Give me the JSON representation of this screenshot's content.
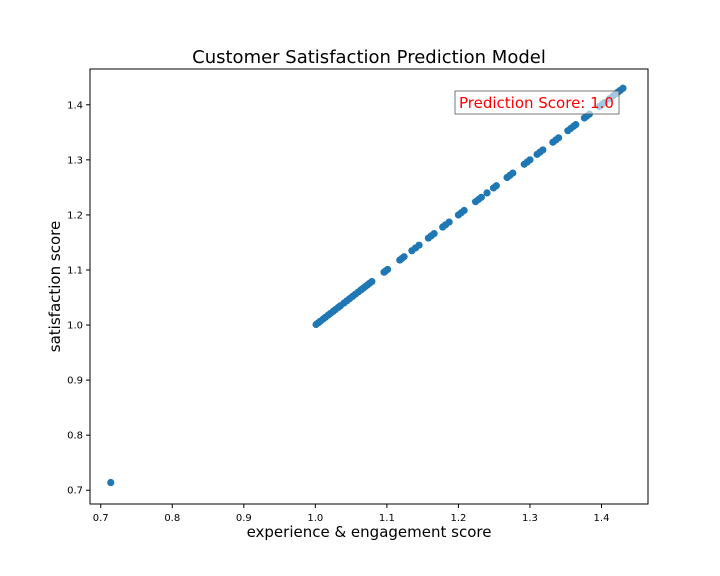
{
  "chart_data": {
    "type": "scatter",
    "title": "Customer Satisfaction Prediction Model",
    "xlabel": "experience & engagement score",
    "ylabel": "satisfaction score",
    "xlim": [
      0.685,
      1.465
    ],
    "ylim": [
      0.675,
      1.465
    ],
    "xticks": [
      0.7,
      0.8,
      0.9,
      1.0,
      1.1,
      1.2,
      1.3,
      1.4
    ],
    "yticks": [
      0.7,
      0.8,
      0.9,
      1.0,
      1.1,
      1.2,
      1.3,
      1.4
    ],
    "grid": false,
    "marker_color": "#1f77b4",
    "annotation": {
      "text": "Prediction Score: 1.0",
      "color": "#ff0000"
    },
    "points": [
      {
        "x": 0.714,
        "y": 0.714
      },
      {
        "x": 1.001,
        "y": 1.001
      },
      {
        "x": 1.004,
        "y": 1.004
      },
      {
        "x": 1.007,
        "y": 1.007
      },
      {
        "x": 1.011,
        "y": 1.011
      },
      {
        "x": 1.014,
        "y": 1.014
      },
      {
        "x": 1.018,
        "y": 1.018
      },
      {
        "x": 1.021,
        "y": 1.021
      },
      {
        "x": 1.025,
        "y": 1.025
      },
      {
        "x": 1.028,
        "y": 1.028
      },
      {
        "x": 1.032,
        "y": 1.032
      },
      {
        "x": 1.035,
        "y": 1.035
      },
      {
        "x": 1.04,
        "y": 1.04
      },
      {
        "x": 1.044,
        "y": 1.044
      },
      {
        "x": 1.048,
        "y": 1.048
      },
      {
        "x": 1.052,
        "y": 1.052
      },
      {
        "x": 1.056,
        "y": 1.056
      },
      {
        "x": 1.06,
        "y": 1.06
      },
      {
        "x": 1.064,
        "y": 1.064
      },
      {
        "x": 1.067,
        "y": 1.067
      },
      {
        "x": 1.07,
        "y": 1.07
      },
      {
        "x": 1.073,
        "y": 1.073
      },
      {
        "x": 1.076,
        "y": 1.076
      },
      {
        "x": 1.079,
        "y": 1.079
      },
      {
        "x": 1.096,
        "y": 1.096
      },
      {
        "x": 1.098,
        "y": 1.098
      },
      {
        "x": 1.101,
        "y": 1.101
      },
      {
        "x": 1.118,
        "y": 1.118
      },
      {
        "x": 1.121,
        "y": 1.121
      },
      {
        "x": 1.124,
        "y": 1.124
      },
      {
        "x": 1.135,
        "y": 1.135
      },
      {
        "x": 1.14,
        "y": 1.14
      },
      {
        "x": 1.145,
        "y": 1.145
      },
      {
        "x": 1.158,
        "y": 1.158
      },
      {
        "x": 1.162,
        "y": 1.162
      },
      {
        "x": 1.166,
        "y": 1.166
      },
      {
        "x": 1.178,
        "y": 1.178
      },
      {
        "x": 1.182,
        "y": 1.182
      },
      {
        "x": 1.187,
        "y": 1.187
      },
      {
        "x": 1.2,
        "y": 1.2
      },
      {
        "x": 1.204,
        "y": 1.204
      },
      {
        "x": 1.208,
        "y": 1.208
      },
      {
        "x": 1.224,
        "y": 1.224
      },
      {
        "x": 1.228,
        "y": 1.228
      },
      {
        "x": 1.232,
        "y": 1.232
      },
      {
        "x": 1.24,
        "y": 1.24
      },
      {
        "x": 1.249,
        "y": 1.249
      },
      {
        "x": 1.253,
        "y": 1.253
      },
      {
        "x": 1.268,
        "y": 1.268
      },
      {
        "x": 1.272,
        "y": 1.272
      },
      {
        "x": 1.276,
        "y": 1.276
      },
      {
        "x": 1.292,
        "y": 1.292
      },
      {
        "x": 1.296,
        "y": 1.296
      },
      {
        "x": 1.3,
        "y": 1.3
      },
      {
        "x": 1.31,
        "y": 1.31
      },
      {
        "x": 1.314,
        "y": 1.314
      },
      {
        "x": 1.318,
        "y": 1.318
      },
      {
        "x": 1.332,
        "y": 1.332
      },
      {
        "x": 1.336,
        "y": 1.336
      },
      {
        "x": 1.34,
        "y": 1.34
      },
      {
        "x": 1.353,
        "y": 1.353
      },
      {
        "x": 1.357,
        "y": 1.357
      },
      {
        "x": 1.361,
        "y": 1.361
      },
      {
        "x": 1.364,
        "y": 1.364
      },
      {
        "x": 1.376,
        "y": 1.376
      },
      {
        "x": 1.379,
        "y": 1.379
      },
      {
        "x": 1.383,
        "y": 1.383
      },
      {
        "x": 1.397,
        "y": 1.397
      },
      {
        "x": 1.401,
        "y": 1.401
      },
      {
        "x": 1.404,
        "y": 1.404
      },
      {
        "x": 1.411,
        "y": 1.411
      },
      {
        "x": 1.416,
        "y": 1.416
      },
      {
        "x": 1.42,
        "y": 1.42
      },
      {
        "x": 1.423,
        "y": 1.423
      },
      {
        "x": 1.426,
        "y": 1.426
      },
      {
        "x": 1.43,
        "y": 1.43
      }
    ]
  }
}
